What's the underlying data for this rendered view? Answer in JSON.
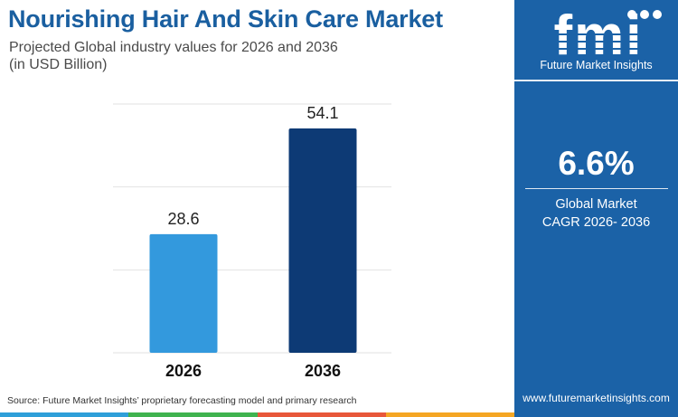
{
  "title": "Nourishing Hair And Skin Care Market",
  "subtitle_line1": "Projected Global industry values for 2026 and 2036",
  "subtitle_line2": "(in USD Billion)",
  "chart_data": {
    "type": "bar",
    "categories": [
      "2026",
      "2036"
    ],
    "values": [
      28.6,
      54.1
    ],
    "value_labels": [
      "28.6",
      "54.1"
    ],
    "bar_colors": [
      "#3399dd",
      "#0d3a75"
    ],
    "ylim": [
      0,
      60
    ],
    "grid": true,
    "xlabel": "",
    "ylabel": ""
  },
  "source": "Source: Future Market Insights’ proprietary forecasting model and primary research",
  "brand": {
    "logo_text": "fmi",
    "tagline": "Future Market Insights",
    "url": "www.futuremarketinsights.com",
    "panel_color": "#1b62a7"
  },
  "cagr": {
    "value": "6.6%",
    "caption_line1": "Global Market",
    "caption_line2": "CAGR 2026- 2036"
  },
  "strip_colors": [
    "#2e9fd9",
    "#3fb34f",
    "#e8573a",
    "#f5a623"
  ]
}
